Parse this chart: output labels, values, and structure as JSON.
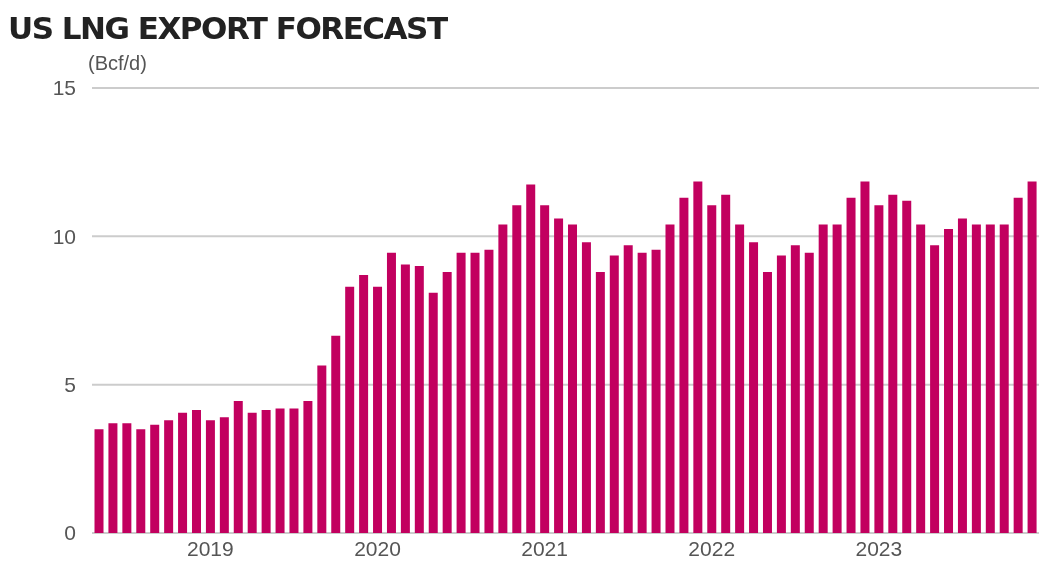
{
  "chart_data": {
    "type": "bar",
    "title": "US LNG EXPORT FORECAST",
    "ylabel": "(Bcf/d)",
    "categories": [
      null,
      null,
      null,
      null,
      null,
      null,
      null,
      null,
      "2019",
      null,
      null,
      null,
      null,
      null,
      null,
      null,
      null,
      null,
      null,
      null,
      "2020",
      null,
      null,
      null,
      null,
      null,
      null,
      null,
      null,
      null,
      null,
      null,
      "2021",
      null,
      null,
      null,
      null,
      null,
      null,
      null,
      null,
      null,
      null,
      null,
      "2022",
      null,
      null,
      null,
      null,
      null,
      null,
      null,
      null,
      null,
      null,
      null,
      "2023",
      null,
      null,
      null,
      null,
      null,
      null,
      null,
      null,
      null,
      null,
      null
    ],
    "values": [
      3.5,
      3.7,
      3.7,
      3.5,
      3.65,
      3.8,
      4.05,
      4.15,
      3.8,
      3.9,
      4.45,
      4.05,
      4.15,
      4.2,
      4.2,
      4.45,
      5.65,
      6.65,
      8.3,
      8.7,
      8.3,
      9.45,
      9.05,
      9.0,
      8.1,
      8.8,
      9.45,
      9.45,
      9.55,
      10.4,
      11.05,
      11.75,
      11.05,
      10.6,
      10.4,
      9.8,
      8.8,
      9.35,
      9.7,
      9.45,
      9.55,
      10.4,
      11.3,
      11.85,
      11.05,
      11.4,
      10.4,
      9.8,
      8.8,
      9.35,
      9.7,
      9.45,
      10.4,
      10.4,
      11.3,
      11.85,
      11.05,
      11.4,
      11.2,
      10.4,
      9.7,
      10.25,
      10.6,
      10.4,
      10.4,
      10.4,
      11.3,
      11.85
    ],
    "color": "#c2005f",
    "ylim": [
      0,
      15
    ],
    "yticks": [
      0,
      5,
      10,
      15
    ],
    "grid": "y"
  }
}
